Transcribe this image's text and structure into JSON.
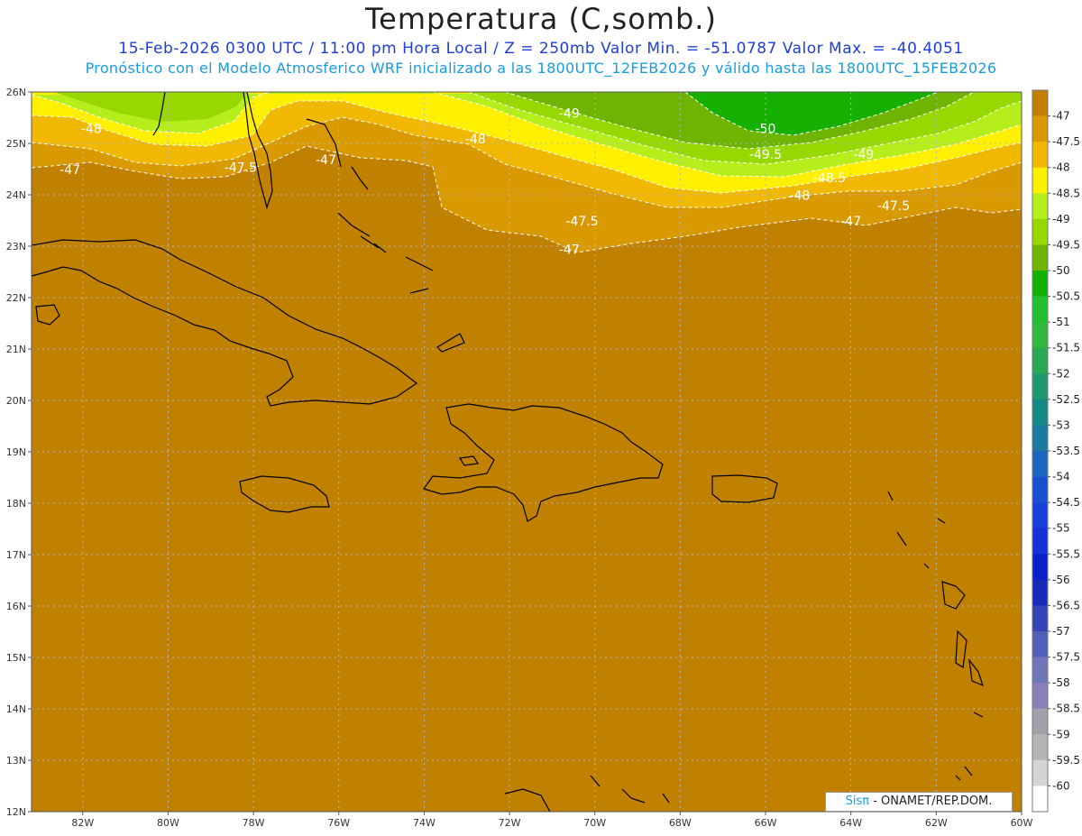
{
  "header": {
    "title": "Temperatura (C,somb.)",
    "subtitle1": "15-Feb-2026  0300 UTC / 11:00 pm Hora Local / Z = 250mb  Valor Min. = -51.0787  Valor Max. = -40.4051",
    "subtitle2": "Pronóstico con el Modelo Atmosferico WRF inicializado a las 1800UTC_12FEB2026 y válido hasta las  1800UTC_15FEB2026"
  },
  "map": {
    "lat_labels": [
      "26N",
      "25N",
      "24N",
      "23N",
      "22N",
      "21N",
      "20N",
      "19N",
      "18N",
      "17N",
      "16N",
      "15N",
      "14N",
      "13N",
      "12N"
    ],
    "lon_labels": [
      "82W",
      "80W",
      "78W",
      "76W",
      "74W",
      "72W",
      "70W",
      "68W",
      "66W",
      "64W",
      "62W",
      "60W"
    ],
    "contour_labels": [
      {
        "text": "-48",
        "lon": -81.8,
        "lat": 25.2
      },
      {
        "text": "-47",
        "lon": -82.3,
        "lat": 24.4
      },
      {
        "text": "-47.5",
        "lon": -78.3,
        "lat": 24.45
      },
      {
        "text": "-47",
        "lon": -76.3,
        "lat": 24.6
      },
      {
        "text": "-48",
        "lon": -72.8,
        "lat": 25.0
      },
      {
        "text": "-49",
        "lon": -70.6,
        "lat": 25.5
      },
      {
        "text": "-50",
        "lon": -66.0,
        "lat": 25.2
      },
      {
        "text": "-49.5",
        "lon": -66.0,
        "lat": 24.7
      },
      {
        "text": "-49",
        "lon": -63.7,
        "lat": 24.7
      },
      {
        "text": "-48.5",
        "lon": -64.5,
        "lat": 24.25
      },
      {
        "text": "-48",
        "lon": -65.2,
        "lat": 23.9
      },
      {
        "text": "-47.5",
        "lon": -63.0,
        "lat": 23.7
      },
      {
        "text": "-47",
        "lon": -64.0,
        "lat": 23.4
      },
      {
        "text": "-47.5",
        "lon": -70.3,
        "lat": 23.4
      },
      {
        "text": "-47",
        "lon": -70.6,
        "lat": 22.85
      }
    ]
  },
  "colorbar": {
    "labels": [
      "-47",
      "-47.5",
      "-48",
      "-48.5",
      "-49",
      "-49.5",
      "-50",
      "-50.5",
      "-51",
      "-51.5",
      "-52",
      "-52.5",
      "-53",
      "-53.5",
      "-54",
      "-54.5",
      "-55",
      "-55.5",
      "-56",
      "-56.5",
      "-57",
      "-57.5",
      "-58",
      "-58.5",
      "-59",
      "-59.5",
      "-60"
    ],
    "colors": [
      "#c08000",
      "#d89a00",
      "#f0b800",
      "#fff000",
      "#b5ee1a",
      "#96d800",
      "#6fb400",
      "#16b000",
      "#22c030",
      "#30b840",
      "#2aa855",
      "#1f9a70",
      "#158a85",
      "#1a7aa0",
      "#1a66c0",
      "#1a50d0",
      "#1840d8",
      "#1430d6",
      "#0a20c8",
      "#1a2ab8",
      "#3644b8",
      "#5060b8",
      "#6e78b8",
      "#8a80b8",
      "#a0a0a8",
      "#b4b4b4",
      "#d4d4d4",
      "#ffffff"
    ],
    "field_colors": {
      "-47": "#c08000",
      "-47.5": "#d89a00",
      "-48": "#f0b800",
      "-48.5": "#fff000",
      "-49": "#b5ee1a",
      "-49.5": "#96d800",
      "-50": "#6fb400",
      "-50.5": "#16b000"
    }
  },
  "credit": {
    "logo": "Sisπ",
    "text": " - ONAMET/REP.DOM."
  }
}
